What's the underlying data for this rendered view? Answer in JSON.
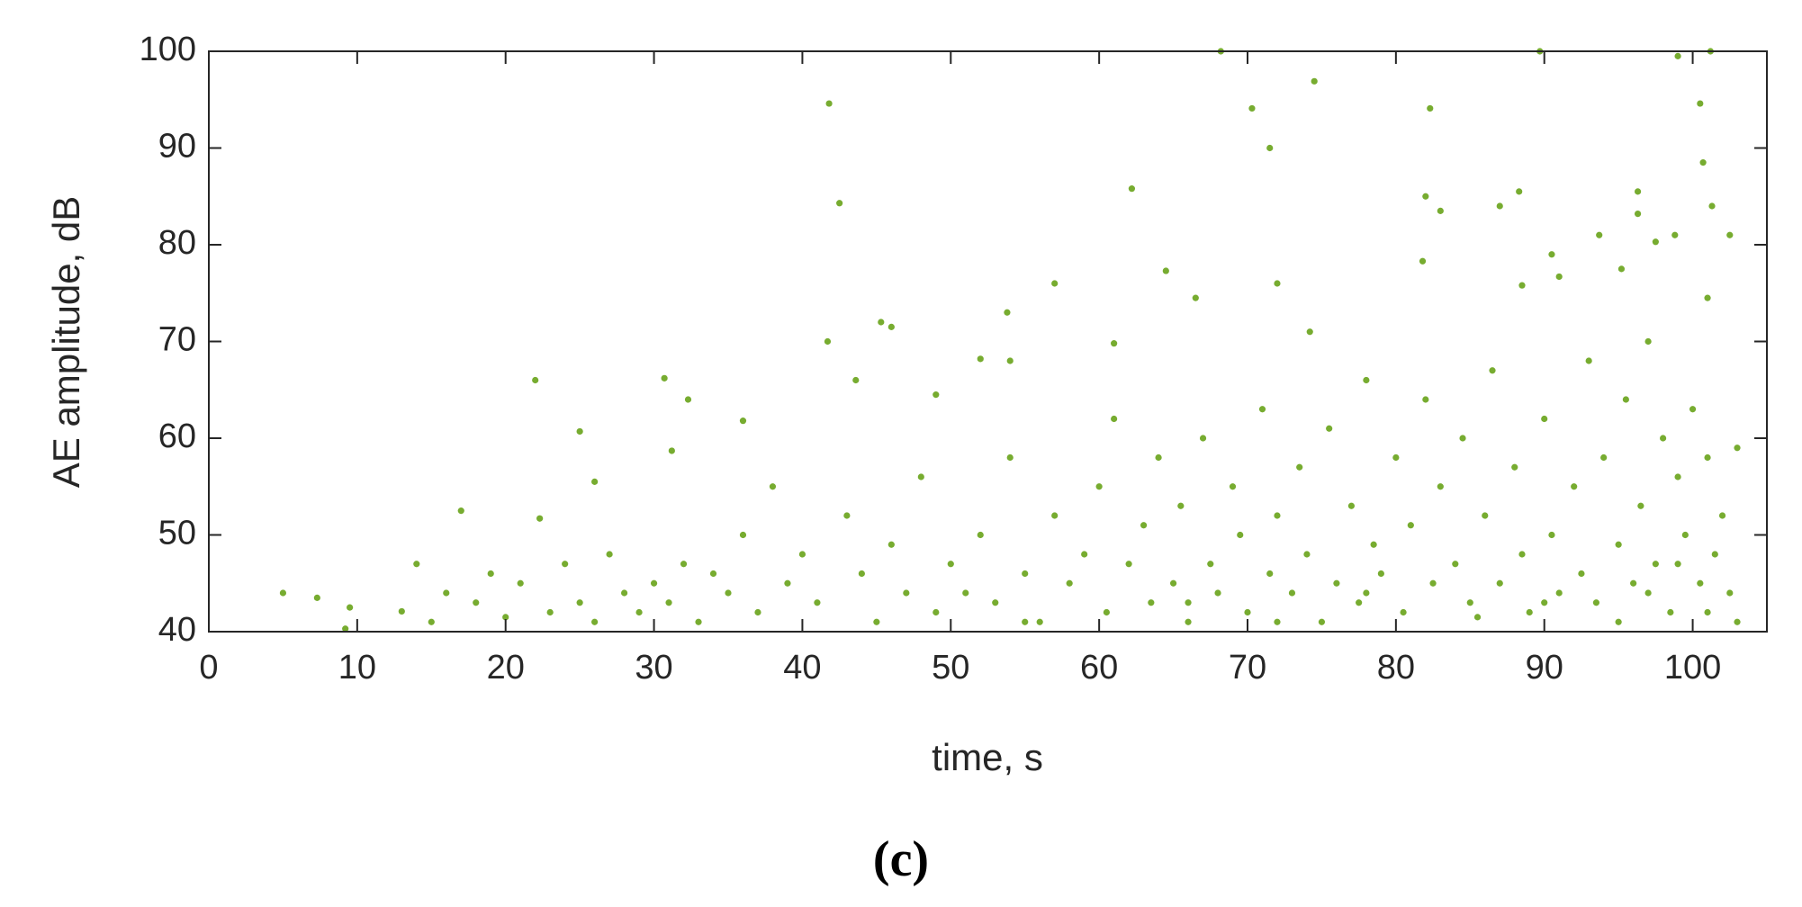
{
  "caption": "(c)",
  "chart_data": {
    "type": "scatter",
    "x_label": "time, s",
    "y_label": "AE amplitude, dB",
    "color": "#77ac30",
    "xlim": [
      0,
      105
    ],
    "ylim": [
      40,
      100
    ],
    "xticks": [
      0,
      10,
      20,
      30,
      40,
      50,
      60,
      70,
      80,
      90,
      100
    ],
    "yticks": [
      40,
      50,
      60,
      70,
      80,
      90,
      100
    ],
    "x": [
      5,
      7.3,
      9.5,
      9.2,
      17,
      22,
      22.3,
      25,
      26,
      30.7,
      31.2,
      32.3,
      36,
      41.8,
      42.5,
      41.7,
      43.6,
      45.3,
      46,
      49,
      52,
      53.8,
      54,
      57,
      61,
      62.2,
      64.5,
      66.5,
      68.2,
      70.3,
      71.5,
      72,
      74.5,
      74.2,
      82.3,
      82,
      83,
      81.8,
      87,
      88.3,
      89.7,
      88.5,
      93.7,
      96.3,
      96.3,
      98.8,
      99,
      100.5,
      100.7,
      101.2,
      101.3,
      102.5,
      101,
      97.5,
      95.2,
      90.5,
      91,
      13,
      14,
      15,
      16,
      18,
      19,
      20,
      21,
      23,
      24,
      25,
      26,
      27,
      28,
      29,
      30,
      31,
      32,
      33,
      34,
      35,
      36,
      37,
      38,
      39,
      40,
      41,
      43,
      44,
      45,
      46,
      47,
      48,
      49,
      50,
      51,
      52,
      53,
      54,
      55,
      56,
      57,
      58,
      59,
      60,
      60.5,
      61,
      62,
      63,
      63.5,
      64,
      65,
      65.5,
      66,
      67,
      67.5,
      68,
      69,
      69.5,
      70,
      71,
      71.5,
      72,
      73,
      73.5,
      74,
      75,
      75.5,
      76,
      77,
      77.5,
      78,
      78.5,
      79,
      80,
      80.5,
      81,
      82,
      82.5,
      83,
      84,
      84.5,
      85,
      86,
      86.5,
      87,
      88,
      88.5,
      89,
      90,
      90.5,
      91,
      92,
      92.5,
      93,
      93.5,
      94,
      95,
      95.5,
      96,
      96.5,
      97,
      97.5,
      98,
      98.5,
      99,
      99.5,
      100,
      100.5,
      101,
      101.5,
      102,
      102.5,
      103,
      103,
      85.5,
      90,
      95,
      97,
      99,
      101,
      78,
      72,
      66,
      55
    ],
    "y": [
      44,
      43.5,
      42.5,
      40.3,
      52.5,
      66,
      51.7,
      60.7,
      55.5,
      66.2,
      58.7,
      64,
      61.8,
      94.6,
      84.3,
      70,
      66,
      72,
      71.5,
      64.5,
      68.2,
      73,
      68,
      76,
      69.8,
      85.8,
      77.3,
      74.5,
      100,
      94.1,
      90,
      76,
      96.9,
      71,
      94.1,
      85,
      83.5,
      78.3,
      84,
      85.5,
      100,
      75.8,
      81,
      85.5,
      83.2,
      81,
      99.5,
      94.6,
      88.5,
      100,
      84,
      81,
      74.5,
      80.3,
      77.5,
      79,
      76.7,
      42.1,
      47,
      41,
      44,
      43,
      46,
      41.5,
      45,
      42,
      47,
      43,
      41,
      48,
      44,
      42,
      45,
      43,
      47,
      41,
      46,
      44,
      50,
      42,
      55,
      45,
      48,
      43,
      52,
      46,
      41,
      49,
      44,
      56,
      42,
      47,
      44,
      50,
      43,
      58,
      46,
      41,
      52,
      45,
      48,
      55,
      42,
      62,
      47,
      51,
      43,
      58,
      45,
      53,
      41,
      60,
      47,
      44,
      55,
      50,
      42,
      63,
      46,
      52,
      44,
      57,
      48,
      41,
      61,
      45,
      53,
      43,
      66,
      49,
      46,
      58,
      42,
      51,
      64,
      45,
      55,
      47,
      60,
      43,
      52,
      67,
      45,
      57,
      48,
      42,
      62,
      50,
      44,
      55,
      46,
      68,
      43,
      58,
      49,
      64,
      45,
      53,
      70,
      47,
      60,
      42,
      56,
      50,
      63,
      45,
      58,
      48,
      52,
      44,
      59,
      41,
      41.5,
      43,
      41,
      44,
      47,
      42,
      44,
      41,
      43,
      41
    ]
  }
}
